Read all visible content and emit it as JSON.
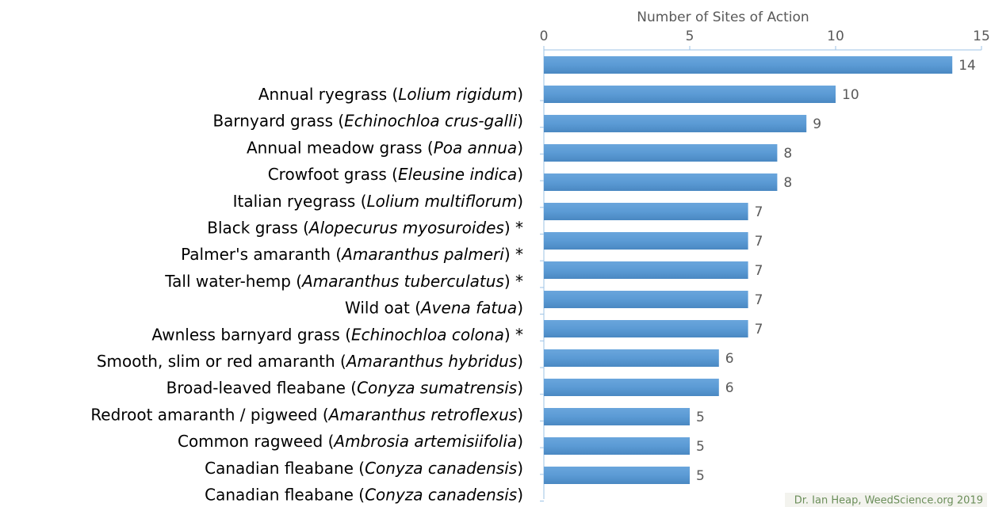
{
  "chart_data": {
    "type": "bar",
    "orientation": "horizontal",
    "x_axis_label": "Number of Sites of Action",
    "categories": [
      "Annual ryegrass (Lolium rigidum)",
      "Barnyard grass (Echinochloa crus-galli)",
      "Annual meadow grass (Poa annua)",
      "Crowfoot grass (Eleusine indica)",
      "Italian ryegrass (Lolium multiflorum)",
      "Black grass (Alopecurus myosuroides) *",
      "Palmer's amaranth (Amaranthus palmeri) *",
      "Tall water-hemp (Amaranthus tuberculatus) *",
      "Wild oat (Avena fatua)",
      "Awnless barnyard grass (Echinochloa colona) *",
      "Smooth, slim or red amaranth (Amaranthus hybridus)",
      "Broad-leaved fleabane (Conyza sumatrensis)",
      "Redroot amaranth / pigweed (Amaranthus retroflexus)",
      "Common ragweed (Ambrosia artemisiifolia)",
      "Canadian fleabane (Conyza canadensis)",
      "Canadian fleabane (Conyza canadensis)"
    ],
    "values": [
      14,
      10,
      9,
      8,
      8,
      7,
      7,
      7,
      7,
      7,
      6,
      6,
      5,
      5,
      5,
      null
    ],
    "color": "#5b9bd5",
    "xlim": [
      0,
      15
    ],
    "xticks": [
      0,
      5,
      10,
      15
    ],
    "credit": "Dr. Ian Heap, WeedScience.org 2019"
  }
}
